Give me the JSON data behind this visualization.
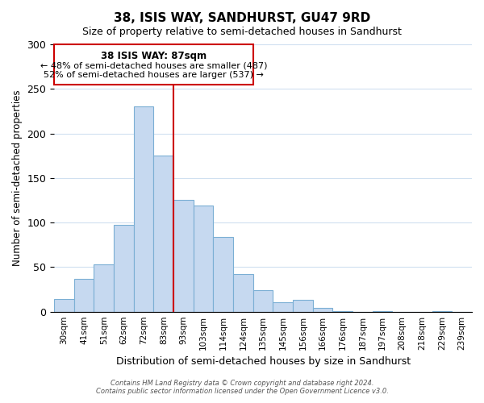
{
  "title": "38, ISIS WAY, SANDHURST, GU47 9RD",
  "subtitle": "Size of property relative to semi-detached houses in Sandhurst",
  "xlabel": "Distribution of semi-detached houses by size in Sandhurst",
  "ylabel": "Number of semi-detached properties",
  "bar_labels": [
    "30sqm",
    "41sqm",
    "51sqm",
    "62sqm",
    "72sqm",
    "83sqm",
    "93sqm",
    "103sqm",
    "114sqm",
    "124sqm",
    "135sqm",
    "145sqm",
    "156sqm",
    "166sqm",
    "176sqm",
    "187sqm",
    "197sqm",
    "208sqm",
    "218sqm",
    "229sqm",
    "239sqm"
  ],
  "bar_values": [
    14,
    37,
    53,
    97,
    230,
    175,
    125,
    119,
    84,
    42,
    24,
    11,
    13,
    4,
    1,
    0,
    1,
    0,
    0,
    1,
    0
  ],
  "bar_color": "#c6d9f0",
  "bar_edge_color": "#7bafd4",
  "ylim": [
    0,
    300
  ],
  "yticks": [
    0,
    50,
    100,
    150,
    200,
    250,
    300
  ],
  "property_line_x": 5.5,
  "property_line_color": "#cc0000",
  "annotation_title": "38 ISIS WAY: 87sqm",
  "annotation_line1": "← 48% of semi-detached houses are smaller (487)",
  "annotation_line2": "52% of semi-detached houses are larger (537) →",
  "annotation_box_color": "#ffffff",
  "annotation_box_edge": "#cc0000",
  "footer_line1": "Contains HM Land Registry data © Crown copyright and database right 2024.",
  "footer_line2": "Contains public sector information licensed under the Open Government Licence v3.0.",
  "background_color": "#ffffff",
  "grid_color": "#d0e0f0"
}
